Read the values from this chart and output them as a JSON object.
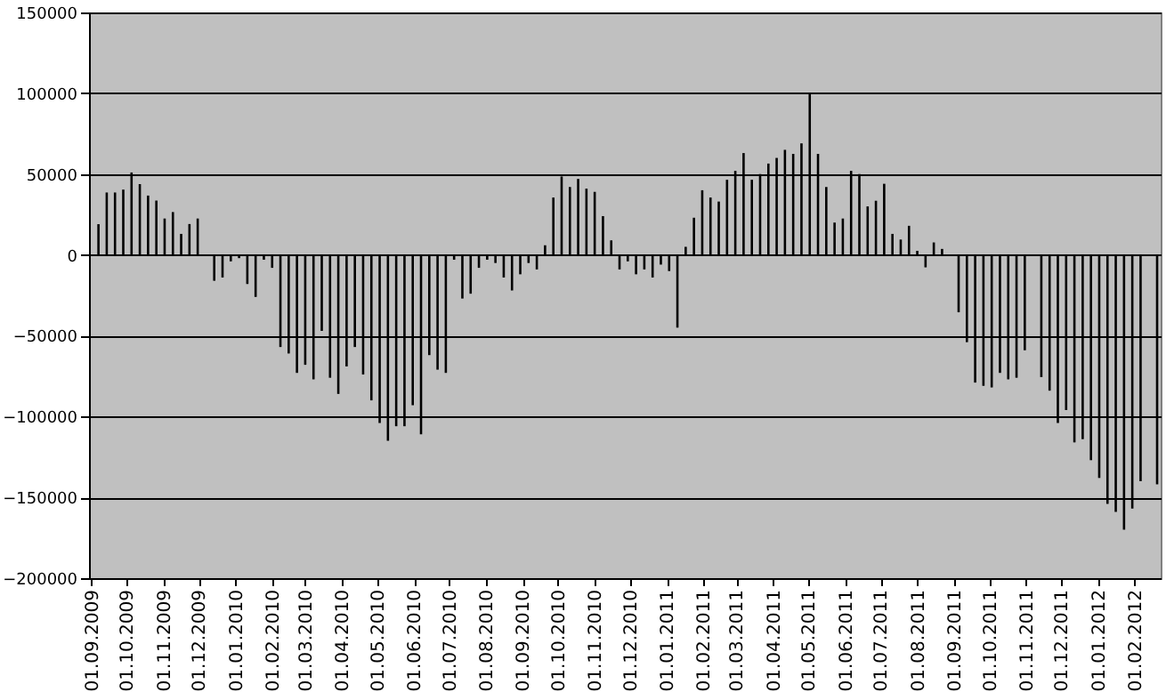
{
  "chart_data": {
    "type": "bar",
    "x": [
      "2009-09-07",
      "2009-09-14",
      "2009-09-21",
      "2009-09-28",
      "2009-10-05",
      "2009-10-12",
      "2009-10-19",
      "2009-10-26",
      "2009-11-02",
      "2009-11-09",
      "2009-11-16",
      "2009-11-23",
      "2009-11-30",
      "2009-12-07",
      "2009-12-14",
      "2009-12-21",
      "2009-12-28",
      "2010-01-04",
      "2010-01-11",
      "2010-01-18",
      "2010-01-25",
      "2010-02-01",
      "2010-02-08",
      "2010-02-15",
      "2010-02-22",
      "2010-03-01",
      "2010-03-08",
      "2010-03-15",
      "2010-03-22",
      "2010-03-29",
      "2010-04-05",
      "2010-04-12",
      "2010-04-19",
      "2010-04-26",
      "2010-05-03",
      "2010-05-10",
      "2010-05-17",
      "2010-05-24",
      "2010-05-31",
      "2010-06-07",
      "2010-06-14",
      "2010-06-21",
      "2010-06-28",
      "2010-07-05",
      "2010-07-12",
      "2010-07-19",
      "2010-07-26",
      "2010-08-02",
      "2010-08-09",
      "2010-08-16",
      "2010-08-23",
      "2010-08-30",
      "2010-09-06",
      "2010-09-13",
      "2010-09-20",
      "2010-09-27",
      "2010-10-04",
      "2010-10-11",
      "2010-10-18",
      "2010-10-25",
      "2010-11-01",
      "2010-11-08",
      "2010-11-15",
      "2010-11-22",
      "2010-11-29",
      "2010-12-06",
      "2010-12-13",
      "2010-12-20",
      "2010-12-27",
      "2011-01-03",
      "2011-01-10",
      "2011-01-17",
      "2011-01-24",
      "2011-01-31",
      "2011-02-07",
      "2011-02-14",
      "2011-02-21",
      "2011-02-28",
      "2011-03-07",
      "2011-03-14",
      "2011-03-21",
      "2011-03-28",
      "2011-04-04",
      "2011-04-11",
      "2011-04-18",
      "2011-04-25",
      "2011-05-02",
      "2011-05-09",
      "2011-05-16",
      "2011-05-23",
      "2011-05-30",
      "2011-06-06",
      "2011-06-13",
      "2011-06-20",
      "2011-06-27",
      "2011-07-04",
      "2011-07-11",
      "2011-07-18",
      "2011-07-25",
      "2011-08-01",
      "2011-08-08",
      "2011-08-15",
      "2011-08-22",
      "2011-08-29",
      "2011-09-05",
      "2011-09-12",
      "2011-09-19",
      "2011-09-26",
      "2011-10-03",
      "2011-10-10",
      "2011-10-17",
      "2011-10-24",
      "2011-10-31",
      "2011-11-07",
      "2011-11-14",
      "2011-11-21",
      "2011-11-28",
      "2011-12-05",
      "2011-12-12",
      "2011-12-19",
      "2011-12-26",
      "2012-01-02",
      "2012-01-09",
      "2012-01-16",
      "2012-01-23",
      "2012-01-30",
      "2012-02-06",
      "2012-02-13",
      "2012-02-20"
    ],
    "values": [
      19000,
      38600,
      38600,
      40400,
      51000,
      43800,
      36700,
      33600,
      22500,
      26500,
      13000,
      19100,
      22500,
      null,
      -16000,
      -14000,
      -4000,
      -2000,
      -18000,
      -26000,
      -3000,
      -8000,
      -57000,
      -61000,
      -73000,
      -68000,
      -77000,
      -47000,
      -76000,
      -86000,
      -69000,
      -57000,
      -74000,
      -90000,
      -104000,
      -115000,
      -106000,
      -106000,
      -93000,
      -111000,
      -62000,
      -71000,
      -73000,
      -3000,
      -27000,
      -24000,
      -8000,
      -3000,
      -5000,
      -14000,
      -22000,
      -12000,
      -5000,
      -9000,
      6000,
      35500,
      48500,
      42000,
      47000,
      41000,
      39000,
      24000,
      9000,
      -9000,
      -4000,
      -12000,
      -9000,
      -14000,
      -6000,
      -10000,
      -45000,
      5000,
      23000,
      40000,
      35500,
      33000,
      46500,
      52000,
      63000,
      46500,
      50000,
      56500,
      60000,
      65000,
      62500,
      69000,
      99400,
      62500,
      42000,
      20000,
      22500,
      52000,
      50000,
      30000,
      33500,
      44000,
      13000,
      9500,
      18000,
      2500,
      -7700,
      7700,
      3700,
      null,
      -35500,
      -54000,
      -79000,
      -81000,
      -82000,
      -73000,
      -77000,
      -76000,
      -59000,
      null,
      -75600,
      -84000,
      -104000,
      -96000,
      -116000,
      -114000,
      -127000,
      -138000,
      -154000,
      -159000,
      -170000,
      -157000,
      -140000,
      null,
      -142000
    ],
    "color": "#000000",
    "xlim": [
      "2009-08-30",
      "2012-02-23"
    ],
    "xticks": [
      {
        "value": "2009-09-01",
        "label": "01.09.2009"
      },
      {
        "value": "2009-10-01",
        "label": "01.10.2009"
      },
      {
        "value": "2009-11-01",
        "label": "01.11.2009"
      },
      {
        "value": "2009-12-01",
        "label": "01.12.2009"
      },
      {
        "value": "2010-01-01",
        "label": "01.01.2010"
      },
      {
        "value": "2010-02-01",
        "label": "01.02.2010"
      },
      {
        "value": "2010-03-01",
        "label": "01.03.2010"
      },
      {
        "value": "2010-04-01",
        "label": "01.04.2010"
      },
      {
        "value": "2010-05-01",
        "label": "01.05.2010"
      },
      {
        "value": "2010-06-01",
        "label": "01.06.2010"
      },
      {
        "value": "2010-07-01",
        "label": "01.07.2010"
      },
      {
        "value": "2010-08-01",
        "label": "01.08.2010"
      },
      {
        "value": "2010-09-01",
        "label": "01.09.2010"
      },
      {
        "value": "2010-10-01",
        "label": "01.10.2010"
      },
      {
        "value": "2010-11-01",
        "label": "01.11.2010"
      },
      {
        "value": "2010-12-01",
        "label": "01.12.2010"
      },
      {
        "value": "2011-01-01",
        "label": "01.01.2011"
      },
      {
        "value": "2011-02-01",
        "label": "01.02.2011"
      },
      {
        "value": "2011-03-01",
        "label": "01.03.2011"
      },
      {
        "value": "2011-04-01",
        "label": "01.04.2011"
      },
      {
        "value": "2011-05-01",
        "label": "01.05.2011"
      },
      {
        "value": "2011-06-01",
        "label": "01.06.2011"
      },
      {
        "value": "2011-07-01",
        "label": "01.07.2011"
      },
      {
        "value": "2011-08-01",
        "label": "01.08.2011"
      },
      {
        "value": "2011-09-01",
        "label": "01.09.2011"
      },
      {
        "value": "2011-10-01",
        "label": "01.10.2011"
      },
      {
        "value": "2011-11-01",
        "label": "01.11.2011"
      },
      {
        "value": "2011-12-01",
        "label": "01.12.2011"
      },
      {
        "value": "2012-01-01",
        "label": "01.01.2012"
      },
      {
        "value": "2012-02-01",
        "label": "01.02.2012"
      }
    ],
    "ylim": [
      -200000,
      150000
    ],
    "yticks": [
      -200000,
      -150000,
      -100000,
      -50000,
      0,
      50000,
      100000,
      150000
    ],
    "grid": "y"
  }
}
